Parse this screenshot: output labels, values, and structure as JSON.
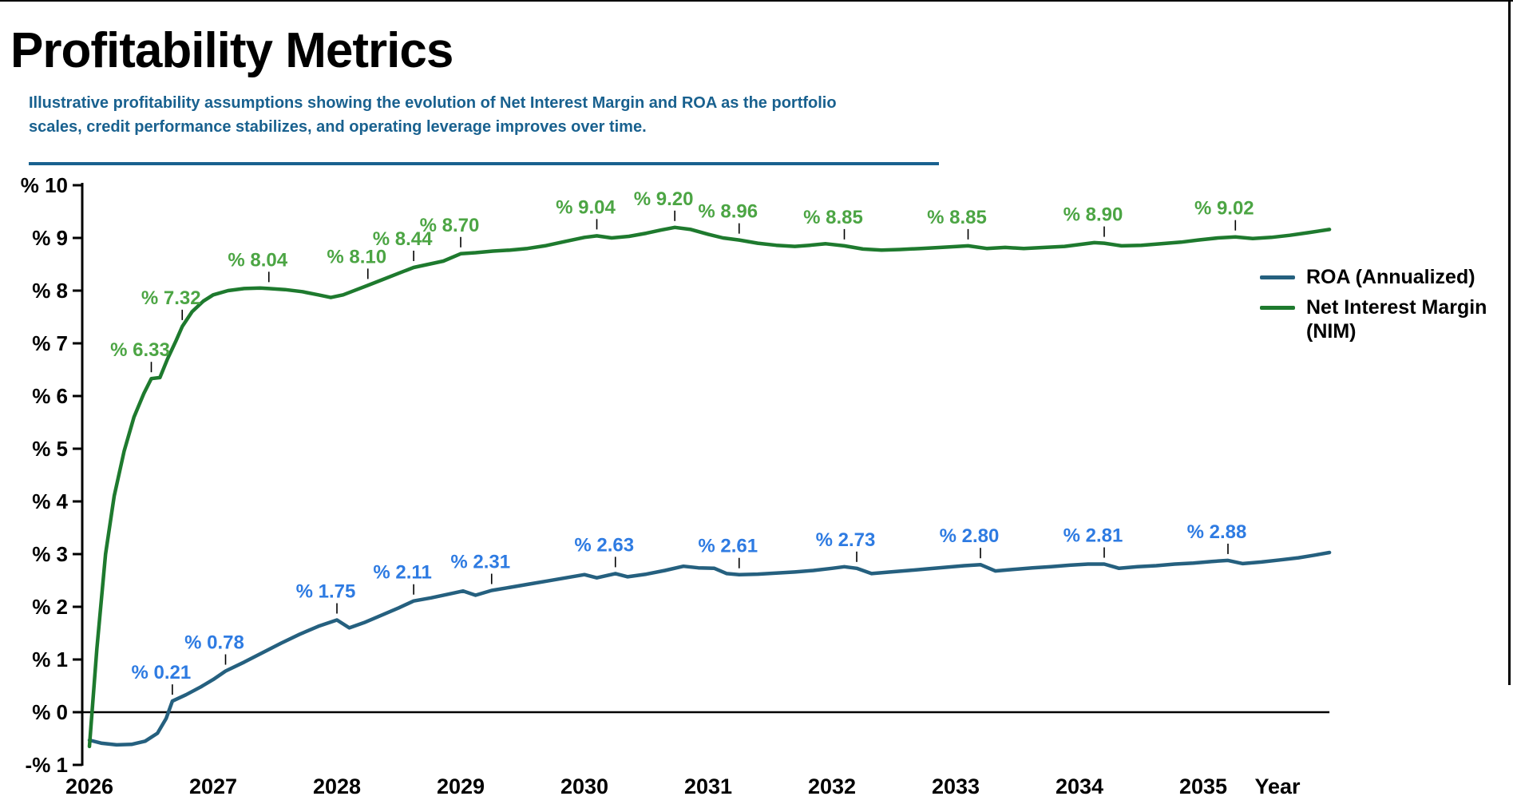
{
  "header": {
    "title": "Profitability Metrics",
    "subtitle_line1": "Illustrative profitability assumptions showing the evolution of Net Interest Margin and ROA as the portfolio",
    "subtitle_line2": "scales, credit performance stabilizes, and operating leverage improves over time.",
    "subtitle_color": "#19618f"
  },
  "legend": {
    "items": [
      {
        "lines": [
          "ROA (Annualized)"
        ],
        "color": "#25607f"
      },
      {
        "lines": [
          "Net Interest Margin",
          "(NIM)"
        ],
        "color": "#1e7a2e"
      }
    ]
  },
  "chart_data": {
    "type": "line",
    "title": "Profitability Metrics",
    "xlabel": "Year",
    "ylabel": "%",
    "grid": false,
    "legend_position": "right",
    "xlim": [
      2026,
      2036.05
    ],
    "ylim": [
      -1,
      10
    ],
    "x_tick_years": [
      2026,
      2027,
      2028,
      2029,
      2030,
      2031,
      2032,
      2033,
      2034,
      2035
    ],
    "x_tick_labels": [
      "2026",
      "2027",
      "2028",
      "2029",
      "2030",
      "2031",
      "2032",
      "2033",
      "2034",
      "2035"
    ],
    "y_ticks": [
      {
        "v": 10,
        "label": "% 10"
      },
      {
        "v": 9,
        "label": "% 9"
      },
      {
        "v": 8,
        "label": "% 8"
      },
      {
        "v": 7,
        "label": "% 7"
      },
      {
        "v": 6,
        "label": "% 6"
      },
      {
        "v": 5,
        "label": "% 5"
      },
      {
        "v": 4,
        "label": "% 4"
      },
      {
        "v": 3,
        "label": "% 3"
      },
      {
        "v": 2,
        "label": "% 2"
      },
      {
        "v": 1,
        "label": "% 1"
      },
      {
        "v": 0,
        "label": "% 0"
      },
      {
        "v": -1,
        "label": "-% 1"
      }
    ],
    "series": [
      {
        "name": "ROA (Annualized)",
        "color": "#25607f",
        "label_color": "#2e7be2",
        "points": [
          [
            2026.0,
            -0.53
          ],
          [
            2026.1,
            -0.59
          ],
          [
            2026.22,
            -0.62
          ],
          [
            2026.34,
            -0.61
          ],
          [
            2026.45,
            -0.55
          ],
          [
            2026.55,
            -0.4
          ],
          [
            2026.62,
            -0.12
          ],
          [
            2026.67,
            0.21
          ],
          [
            2026.78,
            0.33
          ],
          [
            2026.9,
            0.48
          ],
          [
            2027.0,
            0.62
          ],
          [
            2027.1,
            0.78
          ],
          [
            2027.25,
            0.95
          ],
          [
            2027.4,
            1.13
          ],
          [
            2027.55,
            1.31
          ],
          [
            2027.7,
            1.48
          ],
          [
            2027.85,
            1.63
          ],
          [
            2028.0,
            1.75
          ],
          [
            2028.1,
            1.6
          ],
          [
            2028.22,
            1.7
          ],
          [
            2028.36,
            1.84
          ],
          [
            2028.5,
            1.98
          ],
          [
            2028.62,
            2.11
          ],
          [
            2028.76,
            2.17
          ],
          [
            2028.9,
            2.24
          ],
          [
            2029.02,
            2.3
          ],
          [
            2029.12,
            2.22
          ],
          [
            2029.25,
            2.31
          ],
          [
            2029.4,
            2.37
          ],
          [
            2029.55,
            2.43
          ],
          [
            2029.7,
            2.49
          ],
          [
            2029.85,
            2.55
          ],
          [
            2030.0,
            2.61
          ],
          [
            2030.1,
            2.55
          ],
          [
            2030.25,
            2.63
          ],
          [
            2030.35,
            2.57
          ],
          [
            2030.5,
            2.62
          ],
          [
            2030.65,
            2.69
          ],
          [
            2030.8,
            2.77
          ],
          [
            2030.92,
            2.74
          ],
          [
            2031.05,
            2.73
          ],
          [
            2031.15,
            2.63
          ],
          [
            2031.25,
            2.61
          ],
          [
            2031.4,
            2.62
          ],
          [
            2031.55,
            2.64
          ],
          [
            2031.7,
            2.66
          ],
          [
            2031.85,
            2.69
          ],
          [
            2032.0,
            2.73
          ],
          [
            2032.1,
            2.76
          ],
          [
            2032.2,
            2.73
          ],
          [
            2032.32,
            2.63
          ],
          [
            2032.47,
            2.66
          ],
          [
            2032.62,
            2.69
          ],
          [
            2032.77,
            2.72
          ],
          [
            2032.92,
            2.75
          ],
          [
            2033.07,
            2.78
          ],
          [
            2033.2,
            2.8
          ],
          [
            2033.32,
            2.68
          ],
          [
            2033.47,
            2.71
          ],
          [
            2033.62,
            2.74
          ],
          [
            2033.77,
            2.76
          ],
          [
            2033.92,
            2.79
          ],
          [
            2034.07,
            2.81
          ],
          [
            2034.2,
            2.81
          ],
          [
            2034.32,
            2.73
          ],
          [
            2034.47,
            2.76
          ],
          [
            2034.62,
            2.78
          ],
          [
            2034.77,
            2.81
          ],
          [
            2034.92,
            2.83
          ],
          [
            2035.07,
            2.86
          ],
          [
            2035.2,
            2.88
          ],
          [
            2035.32,
            2.82
          ],
          [
            2035.47,
            2.85
          ],
          [
            2035.62,
            2.89
          ],
          [
            2035.77,
            2.93
          ],
          [
            2035.9,
            2.98
          ],
          [
            2036.02,
            3.03
          ]
        ],
        "annotations": [
          {
            "t": 2026.67,
            "v": 0.21,
            "label": "% 0.21"
          },
          {
            "t": 2027.1,
            "v": 0.78,
            "label": "% 0.78"
          },
          {
            "t": 2028.0,
            "v": 1.75,
            "label": "% 1.75"
          },
          {
            "t": 2028.62,
            "v": 2.11,
            "label": "% 2.11"
          },
          {
            "t": 2029.25,
            "v": 2.31,
            "label": "% 2.31"
          },
          {
            "t": 2030.25,
            "v": 2.63,
            "label": "% 2.63"
          },
          {
            "t": 2031.25,
            "v": 2.61,
            "label": "% 2.61"
          },
          {
            "t": 2032.2,
            "v": 2.73,
            "label": "% 2.73"
          },
          {
            "t": 2033.2,
            "v": 2.8,
            "label": "% 2.80"
          },
          {
            "t": 2034.2,
            "v": 2.81,
            "label": "% 2.81"
          },
          {
            "t": 2035.2,
            "v": 2.88,
            "label": "% 2.88"
          }
        ]
      },
      {
        "name": "Net Interest Margin (NIM)",
        "color": "#1e7a2e",
        "label_color": "#4ca544",
        "points": [
          [
            2026.0,
            -0.65
          ],
          [
            2026.06,
            1.2
          ],
          [
            2026.13,
            3.0
          ],
          [
            2026.2,
            4.1
          ],
          [
            2026.28,
            4.95
          ],
          [
            2026.36,
            5.6
          ],
          [
            2026.44,
            6.05
          ],
          [
            2026.5,
            6.33
          ],
          [
            2026.57,
            6.35
          ],
          [
            2026.63,
            6.7
          ],
          [
            2026.7,
            7.05
          ],
          [
            2026.75,
            7.32
          ],
          [
            2026.83,
            7.6
          ],
          [
            2026.92,
            7.8
          ],
          [
            2027.0,
            7.92
          ],
          [
            2027.12,
            8.0
          ],
          [
            2027.25,
            8.04
          ],
          [
            2027.38,
            8.05
          ],
          [
            2027.45,
            8.04
          ],
          [
            2027.58,
            8.02
          ],
          [
            2027.72,
            7.98
          ],
          [
            2027.85,
            7.92
          ],
          [
            2027.95,
            7.87
          ],
          [
            2028.05,
            7.92
          ],
          [
            2028.15,
            8.01
          ],
          [
            2028.25,
            8.1
          ],
          [
            2028.38,
            8.22
          ],
          [
            2028.5,
            8.33
          ],
          [
            2028.62,
            8.44
          ],
          [
            2028.74,
            8.5
          ],
          [
            2028.86,
            8.56
          ],
          [
            2029.0,
            8.7
          ],
          [
            2029.12,
            8.72
          ],
          [
            2029.26,
            8.75
          ],
          [
            2029.4,
            8.77
          ],
          [
            2029.54,
            8.8
          ],
          [
            2029.68,
            8.85
          ],
          [
            2029.84,
            8.93
          ],
          [
            2030.0,
            9.01
          ],
          [
            2030.1,
            9.04
          ],
          [
            2030.22,
            9.0
          ],
          [
            2030.36,
            9.03
          ],
          [
            2030.5,
            9.09
          ],
          [
            2030.62,
            9.15
          ],
          [
            2030.73,
            9.2
          ],
          [
            2030.86,
            9.16
          ],
          [
            2031.0,
            9.07
          ],
          [
            2031.12,
            9.0
          ],
          [
            2031.25,
            8.96
          ],
          [
            2031.4,
            8.9
          ],
          [
            2031.55,
            8.86
          ],
          [
            2031.7,
            8.84
          ],
          [
            2031.82,
            8.86
          ],
          [
            2031.95,
            8.89
          ],
          [
            2032.1,
            8.85
          ],
          [
            2032.25,
            8.79
          ],
          [
            2032.4,
            8.77
          ],
          [
            2032.55,
            8.78
          ],
          [
            2032.72,
            8.8
          ],
          [
            2032.88,
            8.82
          ],
          [
            2033.02,
            8.84
          ],
          [
            2033.1,
            8.85
          ],
          [
            2033.25,
            8.8
          ],
          [
            2033.4,
            8.82
          ],
          [
            2033.55,
            8.8
          ],
          [
            2033.72,
            8.82
          ],
          [
            2033.88,
            8.84
          ],
          [
            2034.02,
            8.88
          ],
          [
            2034.12,
            8.91
          ],
          [
            2034.2,
            8.9
          ],
          [
            2034.34,
            8.85
          ],
          [
            2034.5,
            8.86
          ],
          [
            2034.66,
            8.89
          ],
          [
            2034.82,
            8.92
          ],
          [
            2034.96,
            8.96
          ],
          [
            2035.12,
            9.0
          ],
          [
            2035.26,
            9.02
          ],
          [
            2035.4,
            8.99
          ],
          [
            2035.55,
            9.01
          ],
          [
            2035.7,
            9.05
          ],
          [
            2035.85,
            9.1
          ],
          [
            2036.02,
            9.16
          ]
        ],
        "annotations": [
          {
            "t": 2026.5,
            "v": 6.33,
            "label": "% 6.33"
          },
          {
            "t": 2026.75,
            "v": 7.32,
            "label": "% 7.32"
          },
          {
            "t": 2027.45,
            "v": 8.04,
            "label": "% 8.04"
          },
          {
            "t": 2028.25,
            "v": 8.1,
            "label": "% 8.10"
          },
          {
            "t": 2028.62,
            "v": 8.44,
            "label": "% 8.44"
          },
          {
            "t": 2029.0,
            "v": 8.7,
            "label": "% 8.70"
          },
          {
            "t": 2030.1,
            "v": 9.04,
            "label": "% 9.04"
          },
          {
            "t": 2030.73,
            "v": 9.2,
            "label": "% 9.20"
          },
          {
            "t": 2031.25,
            "v": 8.96,
            "label": "% 8.96"
          },
          {
            "t": 2032.1,
            "v": 8.85,
            "label": "% 8.85"
          },
          {
            "t": 2033.1,
            "v": 8.85,
            "label": "% 8.85"
          },
          {
            "t": 2034.2,
            "v": 8.9,
            "label": "% 8.90"
          },
          {
            "t": 2035.26,
            "v": 9.02,
            "label": "% 9.02"
          }
        ]
      }
    ]
  }
}
